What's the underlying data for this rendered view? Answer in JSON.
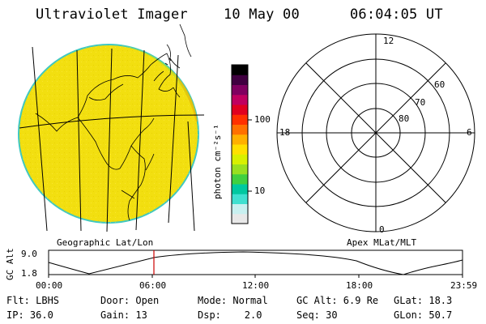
{
  "header": {
    "instrument": "Ultraviolet Imager",
    "date": "10 May 00",
    "time": "06:04:05 UT"
  },
  "colorbar": {
    "unit_label": "photon cm⁻²s⁻¹",
    "tick_100": "100",
    "tick_10": "10",
    "colors": [
      "#e8e8e8",
      "#c8f0f0",
      "#40e0d0",
      "#00c8a0",
      "#40d040",
      "#98e020",
      "#d8f000",
      "#ffe000",
      "#ffb000",
      "#ff7000",
      "#ff3000",
      "#e00020",
      "#c00060",
      "#800060",
      "#400040",
      "#000000"
    ]
  },
  "geo_panel": {
    "caption": "Geographic Lat/Lon",
    "image_fill": "#f2df10",
    "limb_color": "#40c8c0"
  },
  "polar_panel": {
    "caption": "Apex MLat/MLT",
    "mlt_labels": {
      "top": "12",
      "left": "18",
      "right": "6",
      "bottom": "0"
    },
    "lat_labels": [
      "60",
      "70",
      "80"
    ]
  },
  "orbit_plot": {
    "ylabel": "GC Alt",
    "y_top": "9.0",
    "y_bottom": "1.8",
    "x_labels": [
      "00:00",
      "06:00",
      "12:00",
      "18:00",
      "23:59"
    ],
    "marker_color": "#cc0000"
  },
  "info": {
    "row1": {
      "flt": "Flt: LBHS",
      "door": "Door: Open",
      "mode": "Mode: Normal",
      "gcalt": "GC Alt: 6.9 Re",
      "glat": "GLat: 18.3"
    },
    "row2": {
      "ip": "IP: 36.0",
      "gain": "Gain: 13",
      "dsp": "Dsp:    2.0",
      "seq": "Seq: 30",
      "glon": "GLon: 50.7"
    }
  }
}
